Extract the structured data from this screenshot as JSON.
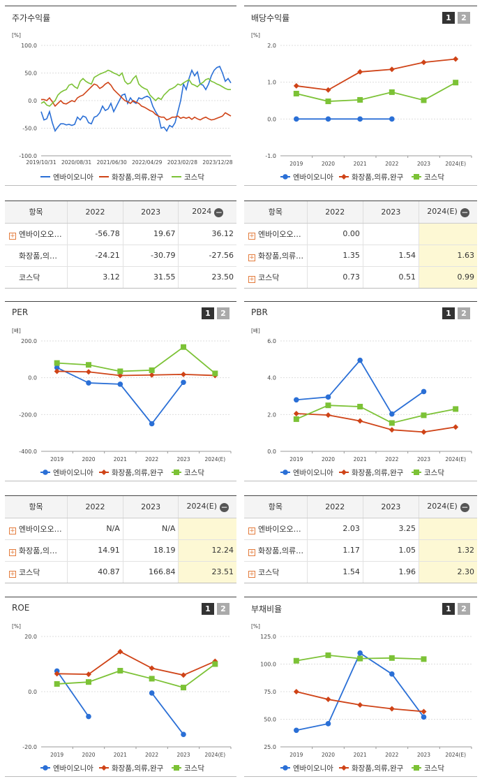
{
  "legend_labels": [
    "엔바이오니아",
    "화장품,의류,완구",
    "코스닥"
  ],
  "colors": {
    "s1": "#2a6fd6",
    "s2": "#cf4317",
    "s3": "#7cc236"
  },
  "tabs": [
    "1",
    "2"
  ],
  "tables": [
    {
      "id": "stock-return-table",
      "header": [
        "항목",
        "2022",
        "2023",
        "2024"
      ],
      "highlight_last": false,
      "rows": [
        {
          "label": "엔바이오오…",
          "plus": true,
          "cells": [
            "-56.78",
            "19.67",
            "36.12"
          ]
        },
        {
          "label": "화장품,의…",
          "plus": false,
          "cells": [
            "-24.21",
            "-30.79",
            "-27.56"
          ]
        },
        {
          "label": "코스닥",
          "plus": false,
          "cells": [
            "3.12",
            "31.55",
            "23.50"
          ]
        }
      ]
    },
    {
      "id": "dividend-table",
      "header": [
        "항목",
        "2022",
        "2023",
        "2024(E)"
      ],
      "highlight_last": true,
      "rows": [
        {
          "label": "엔바이오오…",
          "plus": true,
          "cells": [
            "0.00",
            "",
            ""
          ]
        },
        {
          "label": "화장품,의류…",
          "plus": true,
          "cells": [
            "1.35",
            "1.54",
            "1.63"
          ]
        },
        {
          "label": "코스닥",
          "plus": true,
          "cells": [
            "0.73",
            "0.51",
            "0.99"
          ]
        }
      ]
    },
    {
      "id": "per-table",
      "header": [
        "항목",
        "2022",
        "2023",
        "2024(E)"
      ],
      "highlight_last": true,
      "rows": [
        {
          "label": "엔바이오오…",
          "plus": true,
          "cells": [
            "N/A",
            "N/A",
            ""
          ]
        },
        {
          "label": "화장품,의…",
          "plus": true,
          "cells": [
            "14.91",
            "18.19",
            "12.24"
          ]
        },
        {
          "label": "코스닥",
          "plus": true,
          "cells": [
            "40.87",
            "166.84",
            "23.51"
          ]
        }
      ]
    },
    {
      "id": "pbr-table",
      "header": [
        "항목",
        "2022",
        "2023",
        "2024(E)"
      ],
      "highlight_last": true,
      "rows": [
        {
          "label": "엔바이오오…",
          "plus": true,
          "cells": [
            "2.03",
            "3.25",
            ""
          ]
        },
        {
          "label": "화장품,의류…",
          "plus": true,
          "cells": [
            "1.17",
            "1.05",
            "1.32"
          ]
        },
        {
          "label": "코스닥",
          "plus": true,
          "cells": [
            "1.54",
            "1.96",
            "2.30"
          ]
        }
      ]
    }
  ],
  "chart_data": [
    {
      "id": "stock-return",
      "type": "line",
      "title": "주가수익률",
      "unit": "[%]",
      "tabs": false,
      "ylim": [
        -100,
        100
      ],
      "yticks": [
        "100.0",
        "50.0",
        "0.0",
        "-50.0",
        "-100.0"
      ],
      "xticks": [
        "2019/10/31",
        "2020/08/31",
        "2021/06/30",
        "2022/04/29",
        "2023/02/28",
        "2023/12/28"
      ],
      "series": [
        {
          "name": "엔바이오니아",
          "values": [
            -20,
            -35,
            -33,
            -20,
            -40,
            -55,
            -48,
            -42,
            -42,
            -44,
            -43,
            -45,
            -43,
            -30,
            -35,
            -28,
            -30,
            -40,
            -42,
            -30,
            -28,
            -22,
            -10,
            -18,
            -15,
            -5,
            -20,
            -10,
            0,
            10,
            12,
            -5,
            5,
            -2,
            -5,
            5,
            3,
            6,
            8,
            5,
            -10,
            -20,
            -28,
            -50,
            -48,
            -55,
            -45,
            -48,
            -40,
            -20,
            0,
            30,
            20,
            40,
            55,
            45,
            52,
            30,
            28,
            20,
            30,
            45,
            55,
            60,
            62,
            50,
            35,
            40,
            32
          ]
        },
        {
          "name": "화장품,의류,완구",
          "values": [
            2,
            2,
            0,
            5,
            -2,
            -10,
            -5,
            0,
            -5,
            -6,
            -3,
            0,
            -2,
            5,
            8,
            10,
            15,
            20,
            25,
            30,
            28,
            22,
            25,
            30,
            33,
            28,
            20,
            15,
            10,
            5,
            0,
            -2,
            -5,
            0,
            -3,
            -5,
            -10,
            -12,
            -15,
            -18,
            -20,
            -25,
            -28,
            -30,
            -30,
            -35,
            -33,
            -30,
            -30,
            -28,
            -32,
            -30,
            -32,
            -30,
            -34,
            -30,
            -33,
            -35,
            -32,
            -30,
            -33,
            -35,
            -34,
            -32,
            -30,
            -28,
            -22,
            -25,
            -28
          ]
        },
        {
          "name": "코스닥",
          "values": [
            -5,
            -2,
            -8,
            -10,
            -5,
            0,
            10,
            15,
            18,
            20,
            28,
            30,
            25,
            22,
            35,
            40,
            35,
            32,
            30,
            42,
            45,
            48,
            50,
            52,
            55,
            53,
            50,
            48,
            45,
            50,
            35,
            30,
            32,
            40,
            45,
            30,
            25,
            22,
            20,
            10,
            5,
            0,
            5,
            2,
            10,
            15,
            20,
            22,
            25,
            30,
            28,
            32,
            35,
            38,
            30,
            28,
            25,
            30,
            33,
            38,
            40,
            35,
            33,
            30,
            28,
            25,
            22,
            20,
            20
          ]
        }
      ]
    },
    {
      "id": "dividend-yield",
      "type": "line",
      "title": "배당수익률",
      "unit": "[%]",
      "tabs": true,
      "ylim": [
        -1,
        2
      ],
      "yticks": [
        "2.0",
        "1.0",
        "0.0",
        "-1.0"
      ],
      "categories": [
        "2019",
        "2020",
        "2021",
        "2022",
        "2023",
        "2024(E)"
      ],
      "series": [
        {
          "name": "엔바이오니아",
          "values": [
            0.0,
            0.0,
            0.0,
            0.0,
            null,
            null
          ]
        },
        {
          "name": "화장품,의류,완구",
          "values": [
            0.9,
            0.79,
            1.28,
            1.35,
            1.54,
            1.63
          ]
        },
        {
          "name": "코스닥",
          "values": [
            0.69,
            0.48,
            0.52,
            0.73,
            0.51,
            0.99
          ]
        }
      ]
    },
    {
      "id": "per",
      "type": "line",
      "title": "PER",
      "unit": "[배]",
      "tabs": true,
      "ylim": [
        -400,
        200
      ],
      "yticks": [
        "200.0",
        "0.0",
        "-200.0",
        "-400.0"
      ],
      "categories": [
        "2019",
        "2020",
        "2021",
        "2022",
        "2023",
        "2024(E)"
      ],
      "series": [
        {
          "name": "엔바이오니아",
          "values": [
            55,
            -28,
            -35,
            -250,
            -25,
            null
          ]
        },
        {
          "name": "화장품,의류,완구",
          "values": [
            35,
            32,
            12,
            14.91,
            18.19,
            12.24
          ]
        },
        {
          "name": "코스닥",
          "values": [
            80,
            70,
            35,
            40.87,
            166.84,
            23.51
          ]
        }
      ]
    },
    {
      "id": "pbr",
      "type": "line",
      "title": "PBR",
      "unit": "[배]",
      "tabs": true,
      "ylim": [
        0,
        6
      ],
      "yticks": [
        "6.0",
        "4.0",
        "2.0",
        "0.0"
      ],
      "categories": [
        "2019",
        "2020",
        "2021",
        "2022",
        "2023",
        "2024(E)"
      ],
      "series": [
        {
          "name": "엔바이오니아",
          "values": [
            2.8,
            2.95,
            4.95,
            2.03,
            3.25,
            null
          ]
        },
        {
          "name": "화장품,의류,완구",
          "values": [
            2.05,
            1.97,
            1.65,
            1.17,
            1.05,
            1.32
          ]
        },
        {
          "name": "코스닥",
          "values": [
            1.75,
            2.5,
            2.43,
            1.54,
            1.96,
            2.3
          ]
        }
      ]
    },
    {
      "id": "roe",
      "type": "line",
      "title": "ROE",
      "unit": "[%]",
      "tabs": true,
      "ylim": [
        -20,
        20
      ],
      "yticks": [
        "20.0",
        "0.0",
        "-20.0"
      ],
      "categories": [
        "2019",
        "2020",
        "2021",
        "2022",
        "2023",
        "2024(E)"
      ],
      "series": [
        {
          "name": "엔바이오니아",
          "values": [
            7.5,
            -9.0,
            null,
            -0.5,
            -15.5,
            null
          ]
        },
        {
          "name": "화장품,의류,완구",
          "values": [
            6.5,
            6.3,
            14.5,
            8.5,
            6.0,
            11.0
          ]
        },
        {
          "name": "코스닥",
          "values": [
            2.8,
            3.5,
            7.6,
            4.7,
            1.5,
            10.0
          ]
        }
      ]
    },
    {
      "id": "debt-ratio",
      "type": "line",
      "title": "부채비율",
      "unit": "[%]",
      "tabs": true,
      "ylim": [
        25,
        125
      ],
      "yticks": [
        "125.0",
        "100.0",
        "75.0",
        "50.0",
        "25.0"
      ],
      "categories": [
        "2019",
        "2020",
        "2021",
        "2022",
        "2023",
        "2024(E)"
      ],
      "series": [
        {
          "name": "엔바이오니아",
          "values": [
            40,
            46,
            110,
            91,
            52,
            null
          ]
        },
        {
          "name": "화장품,의류,완구",
          "values": [
            75,
            68,
            63,
            59.5,
            57,
            null
          ]
        },
        {
          "name": "코스닥",
          "values": [
            103,
            108,
            105,
            105.5,
            104.5,
            null
          ]
        }
      ]
    }
  ]
}
